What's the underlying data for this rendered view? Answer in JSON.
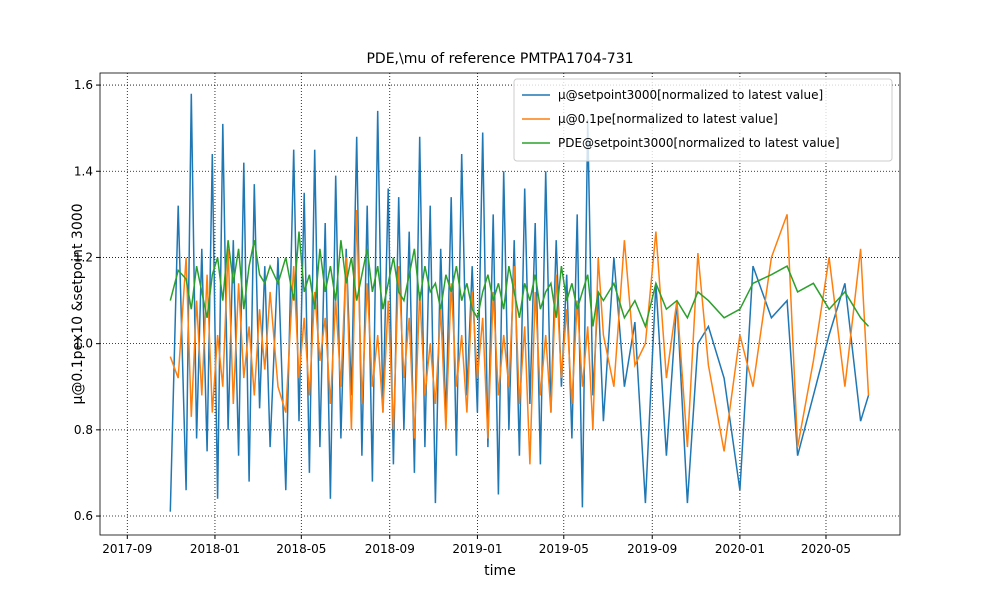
{
  "chart_data": {
    "type": "line",
    "title": "PDE,\\mu of reference PMTPA1704-731",
    "xlabel": "time",
    "ylabel": "μ@0.1pex10 &setpoint 3000",
    "xlim": [
      2017.562,
      2020.61
    ],
    "ylim": [
      0.556,
      1.628
    ],
    "xticks": [
      {
        "value": 2017.666,
        "label": "2017-09"
      },
      {
        "value": 2018.0,
        "label": "2018-01"
      },
      {
        "value": 2018.329,
        "label": "2018-05"
      },
      {
        "value": 2018.666,
        "label": "2018-09"
      },
      {
        "value": 2019.0,
        "label": "2019-01"
      },
      {
        "value": 2019.329,
        "label": "2019-05"
      },
      {
        "value": 2019.666,
        "label": "2019-09"
      },
      {
        "value": 2020.0,
        "label": "2020-01"
      },
      {
        "value": 2020.328,
        "label": "2020-05"
      }
    ],
    "yticks": [
      0.6,
      0.8,
      {
        "value": 1.0,
        "label": "1.0"
      },
      1.2,
      1.4,
      1.6
    ],
    "grid": true,
    "legend": "upper right",
    "x": [
      2017.83,
      2017.86,
      2017.89,
      2017.91,
      2017.93,
      2017.95,
      2017.97,
      2017.99,
      2018.01,
      2018.03,
      2018.05,
      2018.07,
      2018.09,
      2018.11,
      2018.13,
      2018.15,
      2018.17,
      2018.19,
      2018.21,
      2018.24,
      2018.27,
      2018.3,
      2018.32,
      2018.34,
      2018.36,
      2018.38,
      2018.4,
      2018.42,
      2018.44,
      2018.46,
      2018.48,
      2018.5,
      2018.52,
      2018.54,
      2018.56,
      2018.58,
      2018.6,
      2018.62,
      2018.64,
      2018.66,
      2018.68,
      2018.7,
      2018.72,
      2018.74,
      2018.76,
      2018.78,
      2018.8,
      2018.82,
      2018.84,
      2018.86,
      2018.88,
      2018.9,
      2018.92,
      2018.94,
      2018.96,
      2018.98,
      2019.0,
      2019.02,
      2019.04,
      2019.06,
      2019.08,
      2019.1,
      2019.12,
      2019.14,
      2019.16,
      2019.18,
      2019.2,
      2019.22,
      2019.24,
      2019.26,
      2019.28,
      2019.3,
      2019.32,
      2019.34,
      2019.36,
      2019.38,
      2019.4,
      2019.42,
      2019.44,
      2019.46,
      2019.48,
      2019.52,
      2019.56,
      2019.6,
      2019.64,
      2019.68,
      2019.72,
      2019.76,
      2019.8,
      2019.84,
      2019.88,
      2019.94,
      2020.0,
      2020.05,
      2020.12,
      2020.18,
      2020.22,
      2020.28,
      2020.34,
      2020.4,
      2020.46,
      2020.49
    ],
    "series": [
      {
        "name": "μ@setpoint3000[normalized to latest value]",
        "color": "#1f77b4",
        "values": [
          0.61,
          1.32,
          0.66,
          1.58,
          0.78,
          1.22,
          0.75,
          1.44,
          0.64,
          1.51,
          0.8,
          1.24,
          0.74,
          1.42,
          0.68,
          1.37,
          0.85,
          1.18,
          0.76,
          1.2,
          0.66,
          1.45,
          0.82,
          1.35,
          0.7,
          1.45,
          0.76,
          1.28,
          0.64,
          1.39,
          0.78,
          1.22,
          0.88,
          1.48,
          0.74,
          1.32,
          0.68,
          1.54,
          0.84,
          1.36,
          0.72,
          1.34,
          0.8,
          1.26,
          0.7,
          1.48,
          0.76,
          1.32,
          0.63,
          1.22,
          0.82,
          1.34,
          0.74,
          1.44,
          0.88,
          1.18,
          0.84,
          1.49,
          0.76,
          1.3,
          0.65,
          1.4,
          0.8,
          1.24,
          0.74,
          1.36,
          0.86,
          1.28,
          0.72,
          1.4,
          0.84,
          1.24,
          0.9,
          1.16,
          0.78,
          1.3,
          0.62,
          1.52,
          0.88,
          1.12,
          0.82,
          1.2,
          0.9,
          1.05,
          0.63,
          1.14,
          0.74,
          1.1,
          0.63,
          1.0,
          1.04,
          0.92,
          0.66,
          1.18,
          1.06,
          1.1,
          0.74,
          0.88,
          1.02,
          1.14,
          0.82,
          0.88
        ]
      },
      {
        "name": "μ@0.1pe[normalized to latest value]",
        "color": "#ff7f0e",
        "values": [
          0.97,
          0.92,
          1.2,
          0.83,
          1.1,
          0.88,
          1.16,
          0.84,
          1.02,
          0.9,
          1.22,
          0.86,
          1.14,
          0.92,
          1.04,
          0.88,
          1.08,
          0.94,
          1.12,
          0.9,
          0.84,
          1.18,
          0.92,
          1.06,
          0.88,
          1.12,
          0.96,
          1.06,
          0.86,
          1.1,
          0.9,
          1.2,
          0.8,
          1.31,
          0.86,
          1.14,
          0.9,
          1.02,
          0.84,
          1.1,
          0.8,
          1.18,
          0.92,
          1.06,
          0.78,
          1.12,
          0.88,
          1.0,
          0.86,
          1.08,
          0.8,
          1.14,
          0.9,
          1.02,
          0.84,
          1.12,
          0.92,
          1.06,
          0.78,
          1.12,
          0.88,
          1.02,
          0.9,
          1.18,
          0.86,
          1.04,
          0.72,
          1.12,
          0.88,
          1.02,
          0.84,
          1.16,
          0.92,
          1.08,
          0.86,
          1.1,
          0.9,
          1.04,
          0.8,
          1.2,
          1.02,
          0.9,
          1.24,
          0.95,
          1.0,
          1.26,
          0.92,
          1.1,
          0.76,
          1.21,
          0.95,
          0.75,
          1.02,
          0.9,
          1.2,
          1.3,
          0.76,
          0.96,
          1.2,
          0.9,
          1.22,
          0.88
        ]
      },
      {
        "name": "PDE@setpoint3000[normalized to latest value]",
        "color": "#2ca02c",
        "values": [
          1.1,
          1.17,
          1.15,
          1.08,
          1.18,
          1.12,
          1.06,
          1.16,
          1.2,
          1.1,
          1.24,
          1.14,
          1.22,
          1.08,
          1.18,
          1.24,
          1.16,
          1.14,
          1.18,
          1.14,
          1.2,
          1.1,
          1.26,
          1.12,
          1.16,
          1.08,
          1.22,
          1.12,
          1.18,
          1.1,
          1.24,
          1.14,
          1.2,
          1.1,
          1.16,
          1.22,
          1.12,
          1.18,
          1.08,
          1.14,
          1.2,
          1.12,
          1.1,
          1.16,
          1.22,
          1.1,
          1.18,
          1.12,
          1.14,
          1.08,
          1.16,
          1.12,
          1.18,
          1.1,
          1.14,
          1.08,
          1.06,
          1.12,
          1.16,
          1.1,
          1.14,
          1.08,
          1.18,
          1.12,
          1.06,
          1.14,
          1.1,
          1.16,
          1.08,
          1.12,
          1.14,
          1.06,
          1.18,
          1.1,
          1.14,
          1.08,
          1.12,
          1.16,
          1.04,
          1.12,
          1.1,
          1.14,
          1.06,
          1.1,
          1.04,
          1.14,
          1.08,
          1.1,
          1.06,
          1.12,
          1.1,
          1.06,
          1.08,
          1.14,
          1.16,
          1.18,
          1.12,
          1.14,
          1.08,
          1.12,
          1.06,
          1.04
        ]
      }
    ]
  }
}
